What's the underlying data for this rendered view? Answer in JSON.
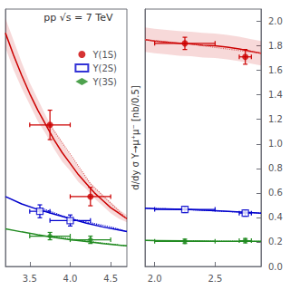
{
  "chart_data": [
    {
      "type": "line",
      "title": "pp √s = 7 TeV",
      "legend": "upper right",
      "grid": false,
      "tick_labels": "x",
      "xlim": [
        3.2,
        4.7
      ],
      "ylim": [
        -0.05,
        1.35
      ],
      "xticks": [
        3.5,
        {
          "value": 4.0,
          "label": "4.0"
        },
        4.5
      ],
      "series": [
        {
          "type": "band",
          "color": "#cc0000",
          "x": [
            3.2,
            3.3,
            3.4,
            3.5,
            3.6,
            3.7,
            3.8,
            3.9,
            4.0,
            4.1,
            4.2,
            4.3,
            4.4,
            4.5,
            4.6,
            4.7
          ],
          "upper": [
            1.3,
            1.18,
            1.06,
            0.95,
            0.86,
            0.77,
            0.69,
            0.62,
            0.55,
            0.49,
            0.43,
            0.38,
            0.34,
            0.3,
            0.26,
            0.23
          ],
          "lower": [
            1.14,
            1.02,
            0.92,
            0.83,
            0.74,
            0.67,
            0.59,
            0.52,
            0.47,
            0.41,
            0.37,
            0.32,
            0.28,
            0.24,
            0.21,
            0.19
          ]
        },
        {
          "type": "line",
          "line_style": "solid",
          "color": "#cc0000",
          "x": [
            3.2,
            3.3,
            3.4,
            3.5,
            3.6,
            3.7,
            3.8,
            3.9,
            4.0,
            4.1,
            4.2,
            4.3,
            4.4,
            4.5,
            4.6,
            4.7
          ],
          "values": [
            1.22,
            1.1,
            0.99,
            0.89,
            0.8,
            0.72,
            0.64,
            0.57,
            0.51,
            0.45,
            0.4,
            0.35,
            0.31,
            0.27,
            0.24,
            0.21
          ]
        },
        {
          "type": "line",
          "line_style": "dotted",
          "color": "#dd6666",
          "x": [
            3.75,
            4.25,
            4.7
          ],
          "values": [
            0.72,
            0.4,
            0.21
          ]
        },
        {
          "type": "line",
          "line_style": "solid",
          "color": "#0000cc",
          "x": [
            3.2,
            3.4,
            3.6,
            3.8,
            4.0,
            4.2,
            4.4,
            4.6,
            4.7
          ],
          "values": [
            0.33,
            0.29,
            0.26,
            0.235,
            0.21,
            0.185,
            0.165,
            0.148,
            0.14
          ]
        },
        {
          "type": "line",
          "line_style": "dotted",
          "color": "#0000cc",
          "x": [
            3.625,
            4.0,
            4.5,
            4.7
          ],
          "values": [
            0.27,
            0.21,
            0.165,
            0.14
          ]
        },
        {
          "type": "line",
          "line_style": "solid",
          "color": "#228B22",
          "x": [
            3.2,
            3.4,
            3.6,
            3.8,
            4.0,
            4.2,
            4.4,
            4.6,
            4.7
          ],
          "values": [
            0.155,
            0.138,
            0.122,
            0.108,
            0.096,
            0.085,
            0.075,
            0.066,
            0.062
          ]
        },
        {
          "type": "line",
          "line_style": "dotted",
          "color": "#228B22",
          "x": [
            3.75,
            4.25,
            4.7
          ],
          "values": [
            0.115,
            0.085,
            0.062
          ]
        },
        {
          "type": "scatter",
          "name": "Υ(1S)",
          "marker": "circle",
          "color": "#cc0000",
          "x": [
            3.75,
            4.25
          ],
          "values": [
            0.72,
            0.33
          ],
          "xerr": [
            0.25,
            0.25
          ],
          "yerr": [
            0.08,
            0.05
          ]
        },
        {
          "type": "scatter",
          "name": "Υ(2S)",
          "marker": "open_square",
          "color": "#0000cc",
          "x": [
            3.625,
            4.0
          ],
          "values": [
            0.25,
            0.2
          ],
          "xerr": [
            0.125,
            0.25
          ],
          "yerr": [
            0.035,
            0.03
          ]
        },
        {
          "type": "scatter",
          "name": "Υ(3S)",
          "marker": "diamond",
          "color": "#228B22",
          "x": [
            3.75,
            4.25
          ],
          "values": [
            0.115,
            0.095
          ],
          "xerr": [
            0.25,
            0.25
          ],
          "yerr": [
            0.02,
            0.02
          ]
        }
      ]
    },
    {
      "type": "line",
      "ylabel": "d/dy σ Υ→μ⁺μ⁻ [nb/0.5]",
      "grid": false,
      "xlim": [
        1.92,
        2.88
      ],
      "ylim": [
        0.0,
        2.1
      ],
      "xticks": [
        {
          "value": 2.0,
          "label": "2.0"
        },
        2.5
      ],
      "yticks": [
        {
          "value": 0.0,
          "label": "0.0"
        },
        0.2,
        0.4,
        0.6,
        0.8,
        {
          "value": 1.0,
          "label": "1.0"
        },
        1.2,
        1.4,
        1.6,
        1.8,
        {
          "value": 2.0,
          "label": "2.0"
        }
      ],
      "series": [
        {
          "type": "band",
          "color": "#cc0000",
          "x": [
            1.92,
            2.0,
            2.1,
            2.2,
            2.3,
            2.4,
            2.5,
            2.6,
            2.7,
            2.8,
            2.88
          ],
          "upper": [
            1.95,
            1.94,
            1.93,
            1.92,
            1.915,
            1.905,
            1.9,
            1.89,
            1.875,
            1.855,
            1.84
          ],
          "lower": [
            1.75,
            1.74,
            1.73,
            1.72,
            1.715,
            1.705,
            1.7,
            1.69,
            1.675,
            1.655,
            1.64
          ]
        },
        {
          "type": "line",
          "line_style": "solid",
          "color": "#cc0000",
          "x": [
            1.92,
            2.0,
            2.1,
            2.2,
            2.3,
            2.4,
            2.5,
            2.6,
            2.7,
            2.8,
            2.88
          ],
          "values": [
            1.85,
            1.84,
            1.83,
            1.82,
            1.815,
            1.805,
            1.8,
            1.79,
            1.775,
            1.755,
            1.74
          ]
        },
        {
          "type": "line",
          "line_style": "dotted",
          "color": "#dd6666",
          "x": [
            1.92,
            2.25,
            2.75,
            2.88
          ],
          "values": [
            1.85,
            1.82,
            1.755,
            1.74
          ]
        },
        {
          "type": "line",
          "line_style": "solid",
          "color": "#0000cc",
          "x": [
            1.92,
            2.0,
            2.25,
            2.5,
            2.75,
            2.88
          ],
          "values": [
            0.475,
            0.472,
            0.465,
            0.455,
            0.442,
            0.435
          ]
        },
        {
          "type": "line",
          "line_style": "dotted",
          "color": "#0000cc",
          "x": [
            1.92,
            2.25,
            2.75,
            2.88
          ],
          "values": [
            0.475,
            0.465,
            0.442,
            0.435
          ]
        },
        {
          "type": "line",
          "line_style": "solid",
          "color": "#228B22",
          "x": [
            1.92,
            2.0,
            2.25,
            2.5,
            2.75,
            2.88
          ],
          "values": [
            0.212,
            0.211,
            0.208,
            0.206,
            0.205,
            0.205
          ]
        },
        {
          "type": "line",
          "line_style": "dotted",
          "color": "#228B22",
          "x": [
            1.92,
            2.25,
            2.75,
            2.88
          ],
          "values": [
            0.212,
            0.208,
            0.205,
            0.205
          ]
        },
        {
          "type": "scatter",
          "marker": "circle",
          "color": "#cc0000",
          "x": [
            2.25,
            2.75
          ],
          "values": [
            1.82,
            1.71
          ],
          "xerr": [
            0.25,
            0.05
          ],
          "yerr": [
            0.05,
            0.06
          ]
        },
        {
          "type": "scatter",
          "marker": "open_square",
          "color": "#0000cc",
          "x": [
            2.25,
            2.75
          ],
          "values": [
            0.465,
            0.435
          ],
          "xerr": [
            0.25,
            0.05
          ],
          "yerr": [
            0.025,
            0.025
          ]
        },
        {
          "type": "scatter",
          "marker": "diamond",
          "color": "#228B22",
          "x": [
            2.25,
            2.75
          ],
          "values": [
            0.205,
            0.21
          ],
          "xerr": [
            0.25,
            0.05
          ],
          "yerr": [
            0.018,
            0.018
          ]
        }
      ]
    }
  ]
}
